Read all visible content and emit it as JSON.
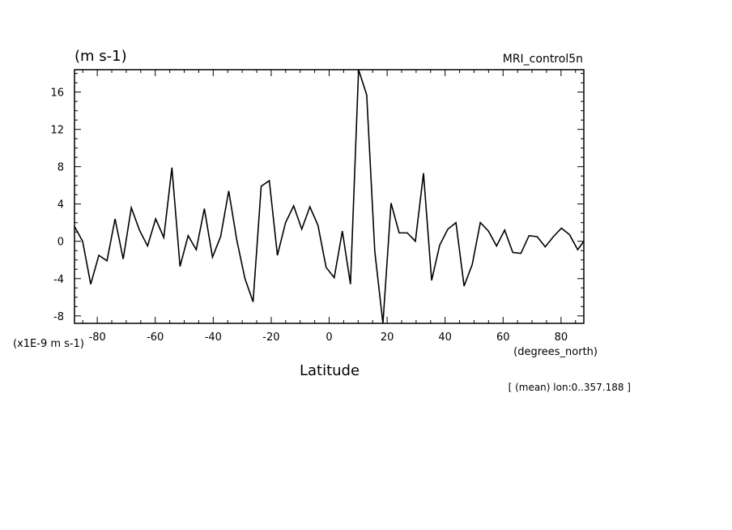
{
  "chart_data": {
    "type": "line",
    "title": "MRI_control5n",
    "units_label": "(m s-1)",
    "scale_note": "(x1E-9 m s-1)",
    "xlabel": "Latitude",
    "xunits": "(degrees_north)",
    "footnote": "[ (mean) lon:0..357.188 ]",
    "xlim": [
      -87.86,
      87.86
    ],
    "ylim": [
      -8.8,
      18.4
    ],
    "xticks": [
      -80,
      -60,
      -40,
      -20,
      0,
      20,
      40,
      60,
      80
    ],
    "xtick_labels": [
      "-80",
      "-60",
      "-40",
      "-20",
      "0",
      "20",
      "40",
      "60",
      "80"
    ],
    "yticks": [
      -8,
      -4,
      0,
      4,
      8,
      12,
      16
    ],
    "ytick_labels": [
      "-8",
      "-4",
      "0",
      "4",
      "8",
      "12",
      "16"
    ],
    "grid": false,
    "color": "#000000",
    "series": [
      {
        "x": [
          -87.86,
          -85.06,
          -82.26,
          -79.46,
          -76.66,
          -73.86,
          -71.06,
          -68.26,
          -65.45,
          -62.65,
          -59.85,
          -57.05,
          -54.25,
          -51.45,
          -48.65,
          -45.85,
          -43.05,
          -40.25,
          -37.45,
          -34.65,
          -31.85,
          -29.05,
          -26.25,
          -23.45,
          -20.65,
          -17.85,
          -15.05,
          -12.25,
          -9.45,
          -6.65,
          -3.85,
          -1.05,
          1.75,
          4.55,
          7.35,
          10.15,
          12.95,
          15.75,
          18.55,
          21.35,
          24.15,
          26.95,
          29.75,
          32.55,
          35.35,
          38.15,
          40.95,
          43.75,
          46.55,
          49.35,
          52.15,
          54.95,
          57.75,
          60.55,
          63.35,
          66.15,
          68.95,
          71.75,
          74.55,
          77.35,
          80.15,
          82.95,
          85.75,
          87.86
        ],
        "y": [
          1.6,
          0.0,
          -4.6,
          -1.5,
          -2.1,
          2.4,
          -1.9,
          3.6,
          1.2,
          -0.5,
          2.4,
          0.4,
          7.9,
          -2.7,
          0.6,
          -0.9,
          3.5,
          -1.7,
          0.5,
          5.4,
          0.1,
          -4.0,
          -6.5,
          5.9,
          6.5,
          -1.5,
          2.0,
          3.8,
          1.3,
          3.7,
          1.7,
          -2.8,
          -3.9,
          1.1,
          -4.6,
          18.4,
          15.7,
          -1.1,
          -8.8,
          4.1,
          0.9,
          0.9,
          0.0,
          7.3,
          -4.2,
          -0.4,
          1.3,
          2.0,
          -4.8,
          -2.5,
          2.0,
          1.1,
          -0.5,
          1.2,
          -1.2,
          -1.3,
          0.6,
          0.5,
          -0.6,
          0.5,
          1.4,
          0.7,
          -0.9,
          0.0
        ]
      }
    ]
  }
}
